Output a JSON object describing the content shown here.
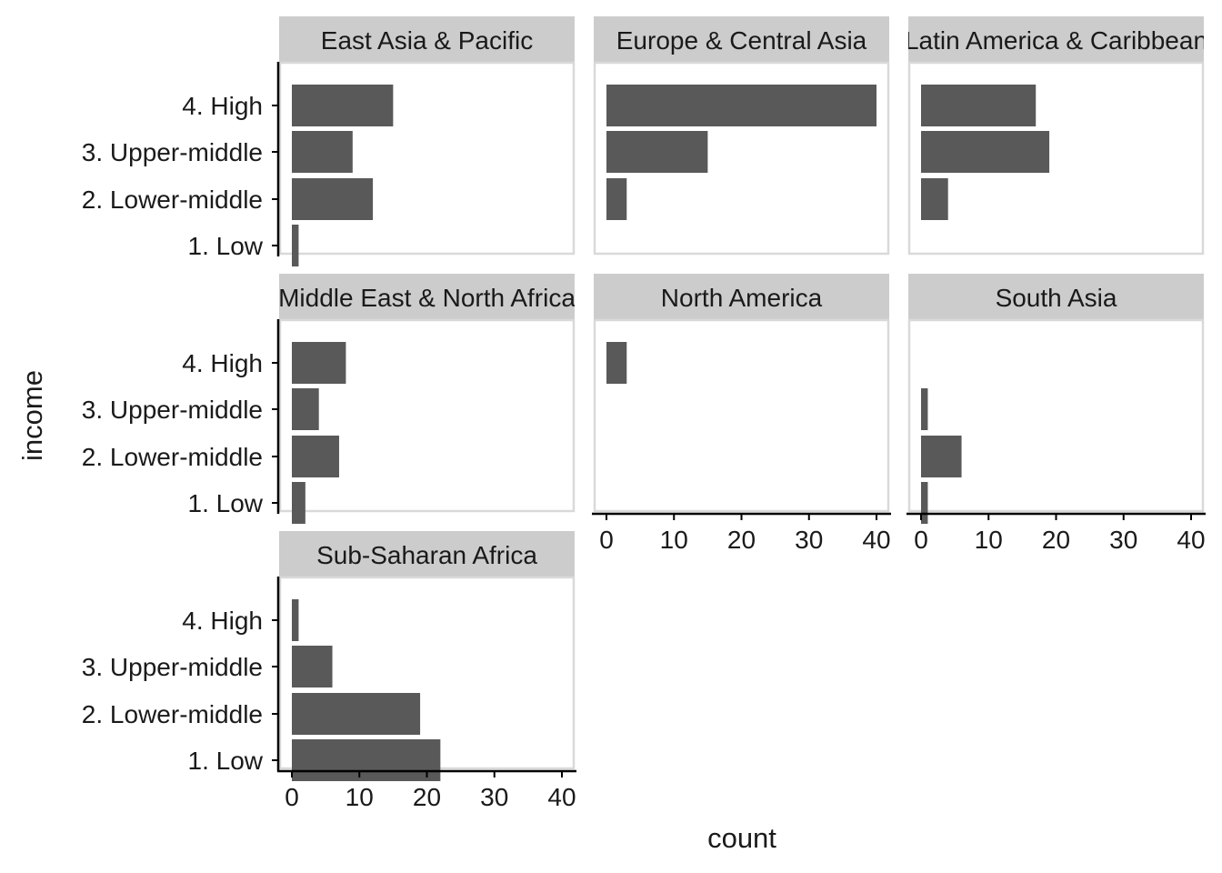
{
  "chart_data": {
    "type": "bar",
    "orientation": "horizontal",
    "xlabel": "count",
    "ylabel": "income",
    "xlim": [
      0,
      40
    ],
    "x_ticks": [
      0,
      10,
      20,
      30,
      40
    ],
    "categories": [
      "4. High",
      "3. Upper-middle",
      "2. Lower-middle",
      "1. Low"
    ],
    "grid": false,
    "colors": {
      "bar": "#595959",
      "strip_background": "#cccccc",
      "panel_border": "#d9d9d9",
      "axis_line": "#000000"
    },
    "facets": [
      {
        "name": "East Asia & Pacific",
        "values": [
          15,
          9,
          12,
          1
        ]
      },
      {
        "name": "Europe & Central Asia",
        "values": [
          40,
          15,
          3,
          0
        ]
      },
      {
        "name": "Latin America & Caribbean",
        "values": [
          17,
          19,
          4,
          0
        ]
      },
      {
        "name": "Middle East & North Africa",
        "values": [
          8,
          4,
          7,
          2
        ]
      },
      {
        "name": "North America",
        "values": [
          3,
          0,
          0,
          0
        ]
      },
      {
        "name": "South Asia",
        "values": [
          0,
          1,
          6,
          1
        ]
      },
      {
        "name": "Sub-Saharan Africa",
        "values": [
          1,
          6,
          19,
          22
        ]
      }
    ]
  }
}
